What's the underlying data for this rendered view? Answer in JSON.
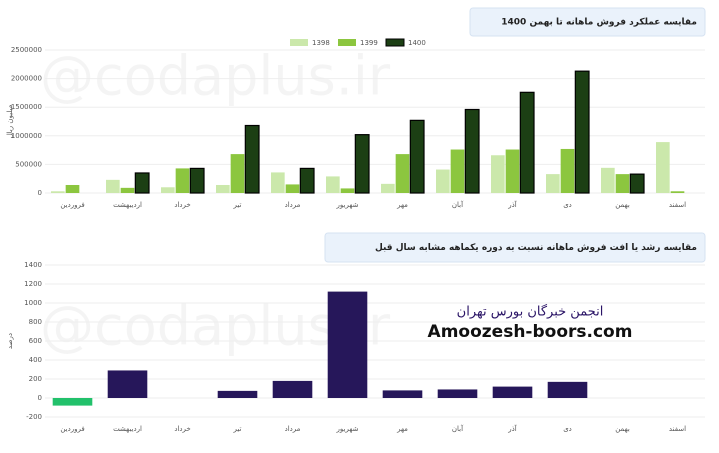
{
  "watermark": "@codaplus.ir",
  "chart_data": [
    {
      "type": "bar",
      "title": "مقایسه عملکرد فروش ماهانه تا بهمن 1400",
      "y_label": "میلیون ریال",
      "categories": [
        "فروردین",
        "اردیبهشت",
        "خرداد",
        "تیر",
        "مرداد",
        "شهریور",
        "مهر",
        "آبان",
        "آذر",
        "دی",
        "بهمن",
        "اسفند"
      ],
      "series": [
        {
          "name": "1398",
          "color": "#cbe8ab",
          "values": [
            30000,
            230000,
            100000,
            140000,
            360000,
            290000,
            160000,
            410000,
            660000,
            330000,
            440000,
            890000
          ]
        },
        {
          "name": "1399",
          "color": "#8cc63f",
          "values": [
            140000,
            90000,
            430000,
            680000,
            150000,
            80000,
            680000,
            760000,
            760000,
            770000,
            330000,
            30000
          ]
        },
        {
          "name": "1400",
          "color": "#1c3f14",
          "values": [
            null,
            350000,
            430000,
            1180000,
            430000,
            1020000,
            1270000,
            1460000,
            1760000,
            2130000,
            330000,
            null
          ]
        }
      ],
      "ylim": [
        0,
        2500000
      ],
      "yticks": [
        0,
        500000,
        1000000,
        1500000,
        2000000,
        2500000
      ]
    },
    {
      "type": "bar",
      "title": "مقایسه رشد یا افت فروش ماهانه نسبت به دوره یکماهه مشابه سال قبل",
      "y_label": "درصد",
      "categories": [
        "فروردین",
        "اردیبهشت",
        "خرداد",
        "تیر",
        "مرداد",
        "شهریور",
        "مهر",
        "آبان",
        "آذر",
        "دی",
        "بهمن",
        "اسفند"
      ],
      "values": [
        -80,
        290,
        0,
        75,
        180,
        1120,
        80,
        90,
        120,
        170,
        null,
        null
      ],
      "color": "#26175a",
      "negative_color": "#22c16b",
      "ylim": [
        -200,
        1400
      ],
      "yticks": [
        -200,
        0,
        200,
        400,
        600,
        800,
        1000,
        1200,
        1400
      ],
      "annotations": [
        "انجمن خبرگان بورس تهران",
        "Amoozesh-boors.com"
      ]
    }
  ]
}
